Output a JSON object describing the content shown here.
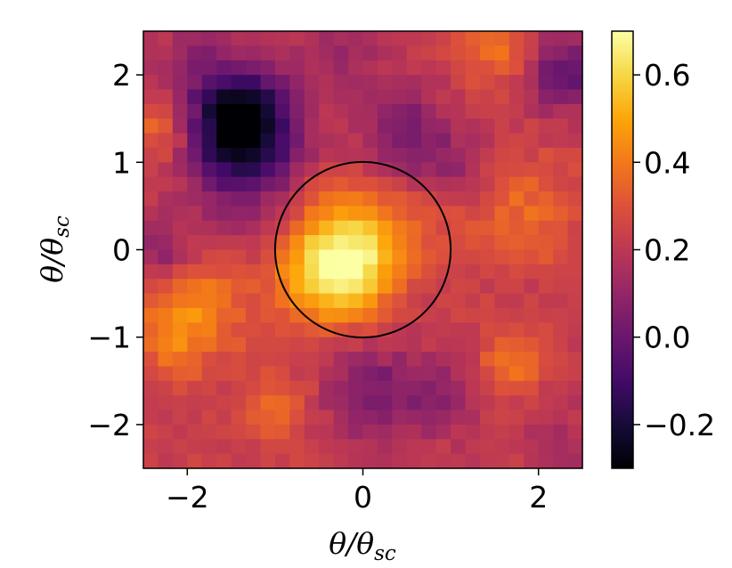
{
  "chart_data": {
    "type": "heatmap",
    "title": "",
    "xlabel": {
      "main": "θ/θ",
      "sub": "sc"
    },
    "ylabel": {
      "main": "θ/θ",
      "sub": "sc"
    },
    "xlim": [
      -2.5,
      2.5
    ],
    "ylim": [
      -2.5,
      2.5
    ],
    "grid_size": 30,
    "colormap": "inferno",
    "x_ticks": [
      {
        "value": -2,
        "label": "−2"
      },
      {
        "value": 0,
        "label": "0"
      },
      {
        "value": 2,
        "label": "2"
      }
    ],
    "y_ticks": [
      {
        "value": 2,
        "label": "2"
      },
      {
        "value": 1,
        "label": "1"
      },
      {
        "value": 0,
        "label": "0"
      },
      {
        "value": -1,
        "label": "−1"
      },
      {
        "value": -2,
        "label": "−2"
      }
    ],
    "circle": {
      "cx": 0,
      "cy": 0,
      "r": 1,
      "color": "#000000"
    },
    "background_level": 0.22,
    "features": [
      {
        "x": -0.3,
        "y": -0.2,
        "amp": 0.47,
        "sigma": 0.45
      },
      {
        "x": 0.05,
        "y": 0.2,
        "amp": 0.12,
        "sigma": 0.4
      },
      {
        "x": -1.4,
        "y": 1.5,
        "amp": -0.52,
        "sigma": 0.4
      },
      {
        "x": -1.3,
        "y": 0.9,
        "amp": -0.2,
        "sigma": 0.5
      },
      {
        "x": -1.9,
        "y": -0.7,
        "amp": 0.2,
        "sigma": 0.4
      },
      {
        "x": -2.2,
        "y": -1.1,
        "amp": 0.1,
        "sigma": 0.3
      },
      {
        "x": 1.7,
        "y": -1.3,
        "amp": 0.18,
        "sigma": 0.25
      },
      {
        "x": 1.8,
        "y": 0.4,
        "amp": 0.14,
        "sigma": 0.45
      },
      {
        "x": 0.5,
        "y": 1.3,
        "amp": -0.2,
        "sigma": 0.35
      },
      {
        "x": 0.1,
        "y": -1.6,
        "amp": -0.18,
        "sigma": 0.4
      },
      {
        "x": 0.9,
        "y": -1.7,
        "amp": -0.12,
        "sigma": 0.3
      },
      {
        "x": -1.0,
        "y": -1.8,
        "amp": 0.15,
        "sigma": 0.3
      },
      {
        "x": -2.3,
        "y": 0.0,
        "amp": -0.14,
        "sigma": 0.25
      },
      {
        "x": -2.3,
        "y": 1.4,
        "amp": 0.16,
        "sigma": 0.25
      },
      {
        "x": 2.3,
        "y": 2.0,
        "amp": -0.25,
        "sigma": 0.3
      },
      {
        "x": 1.5,
        "y": 2.3,
        "amp": 0.16,
        "sigma": 0.3
      },
      {
        "x": 0.7,
        "y": 0.3,
        "amp": 0.06,
        "sigma": 0.3
      },
      {
        "x": -0.2,
        "y": 2.3,
        "amp": -0.1,
        "sigma": 0.35
      },
      {
        "x": 1.1,
        "y": 0.9,
        "amp": -0.08,
        "sigma": 0.3
      },
      {
        "x": -0.6,
        "y": 0.7,
        "amp": 0.05,
        "sigma": 0.3
      },
      {
        "x": 2.3,
        "y": -2.3,
        "amp": -0.08,
        "sigma": 0.3
      },
      {
        "x": -1.9,
        "y": 2.2,
        "amp": -0.1,
        "sigma": 0.3
      }
    ],
    "colorbar": {
      "min": -0.3,
      "max": 0.7,
      "ticks": [
        {
          "value": 0.6,
          "label": "0.6"
        },
        {
          "value": 0.4,
          "label": "0.4"
        },
        {
          "value": 0.2,
          "label": "0.2"
        },
        {
          "value": 0.0,
          "label": "0.0"
        },
        {
          "value": -0.2,
          "label": "−0.2"
        }
      ]
    }
  }
}
